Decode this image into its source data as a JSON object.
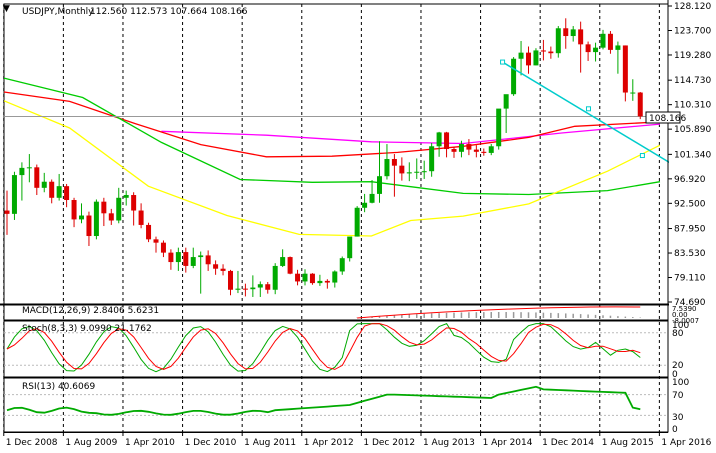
{
  "header": {
    "symbol": "USDJPY,Monthly",
    "ohlc": "112.560 112.573 107.664 108.166"
  },
  "chart_data": {
    "type": "candlestick",
    "symbol": "USDJPY",
    "timeframe": "Monthly",
    "price_axis": {
      "ticks": [
        "128.120",
        "123.700",
        "119.280",
        "114.730",
        "110.310",
        "105.890",
        "101.340",
        "96.920",
        "92.500",
        "87.950",
        "83.530",
        "79.110",
        "74.690"
      ],
      "range": [
        74.69,
        128.12
      ],
      "current_price_label": "108.166",
      "current_price": 108.166
    },
    "time_axis": {
      "labels": [
        "1 Dec 2008",
        "1 Aug 2009",
        "1 Apr 2010",
        "1 Dec 2010",
        "1 Aug 2011",
        "1 Apr 2012",
        "1 Dec 2012",
        "1 Aug 2013",
        "1 Apr 2014",
        "1 Dec 2014",
        "1 Aug 2015",
        "1 Apr 2016"
      ]
    },
    "candles": [
      [
        91.2,
        94.8,
        86.8,
        90.6
      ],
      [
        90.6,
        98.2,
        89.5,
        97.6
      ],
      [
        97.6,
        99.9,
        93.0,
        98.9
      ],
      [
        98.9,
        101.4,
        96.3,
        99.0
      ],
      [
        99.0,
        99.5,
        94.0,
        95.3
      ],
      [
        95.3,
        98.0,
        94.5,
        96.4
      ],
      [
        96.4,
        96.8,
        92.5,
        93.5
      ],
      [
        93.5,
        97.8,
        93.0,
        95.6
      ],
      [
        95.6,
        96.0,
        91.8,
        93.1
      ],
      [
        93.1,
        93.5,
        88.2,
        89.6
      ],
      [
        89.6,
        92.5,
        88.9,
        90.3
      ],
      [
        90.3,
        91.0,
        84.8,
        86.6
      ],
      [
        86.6,
        93.2,
        86.0,
        92.8
      ],
      [
        92.8,
        93.5,
        88.4,
        90.7
      ],
      [
        90.7,
        91.5,
        88.6,
        89.4
      ],
      [
        89.4,
        95.3,
        88.9,
        93.5
      ],
      [
        93.5,
        94.8,
        92.1,
        94.0
      ],
      [
        94.0,
        94.5,
        88.5,
        91.2
      ],
      [
        91.2,
        92.5,
        88.0,
        88.6
      ],
      [
        88.6,
        89.0,
        85.5,
        86.0
      ],
      [
        86.0,
        86.5,
        83.6,
        85.4
      ],
      [
        85.4,
        85.8,
        82.8,
        83.6
      ],
      [
        83.6,
        84.2,
        80.5,
        81.9
      ],
      [
        81.9,
        84.5,
        80.3,
        83.7
      ],
      [
        83.7,
        84.5,
        80.0,
        81.2
      ],
      [
        81.2,
        84.5,
        80.8,
        82.8
      ],
      [
        82.8,
        83.8,
        76.2,
        83.1
      ],
      [
        83.1,
        84.0,
        80.3,
        81.5
      ],
      [
        81.5,
        82.2,
        79.6,
        80.7
      ],
      [
        80.7,
        81.5,
        79.5,
        80.3
      ],
      [
        80.3,
        80.5,
        75.9,
        76.9
      ],
      [
        76.9,
        80.3,
        76.3,
        77.1
      ],
      [
        77.1,
        78.0,
        75.7,
        77.0
      ],
      [
        77.0,
        79.5,
        75.6,
        77.3
      ],
      [
        77.3,
        78.4,
        75.6,
        77.9
      ],
      [
        77.9,
        78.3,
        76.2,
        76.9
      ],
      [
        76.9,
        81.7,
        76.1,
        81.2
      ],
      [
        81.2,
        84.2,
        81.0,
        82.8
      ],
      [
        82.8,
        82.9,
        79.7,
        79.8
      ],
      [
        79.8,
        80.5,
        77.7,
        78.4
      ],
      [
        78.4,
        80.6,
        77.7,
        79.8
      ],
      [
        79.8,
        79.9,
        77.8,
        78.1
      ],
      [
        78.1,
        79.6,
        77.6,
        78.5
      ],
      [
        78.5,
        78.8,
        77.1,
        78.2
      ],
      [
        78.2,
        80.4,
        77.3,
        80.2
      ],
      [
        80.2,
        82.9,
        79.6,
        82.6
      ],
      [
        82.6,
        86.4,
        82.0,
        86.5
      ],
      [
        86.5,
        92.0,
        86.5,
        91.7
      ],
      [
        91.7,
        94.2,
        90.9,
        92.6
      ],
      [
        92.6,
        96.7,
        92.5,
        94.2
      ],
      [
        94.2,
        103.7,
        92.6,
        97.4
      ],
      [
        97.4,
        103.2,
        96.8,
        100.5
      ],
      [
        100.5,
        101.4,
        93.7,
        99.3
      ],
      [
        99.3,
        100.8,
        96.6,
        97.9
      ],
      [
        97.9,
        99.9,
        96.5,
        98.1
      ],
      [
        98.1,
        100.6,
        96.9,
        98.2
      ],
      [
        98.2,
        100.2,
        96.9,
        98.3
      ],
      [
        98.3,
        103.4,
        97.3,
        102.8
      ],
      [
        102.8,
        105.4,
        100.9,
        105.3
      ],
      [
        105.3,
        105.4,
        100.8,
        102.3
      ],
      [
        102.3,
        102.7,
        100.7,
        101.8
      ],
      [
        101.8,
        103.8,
        100.8,
        103.2
      ],
      [
        103.2,
        104.1,
        101.2,
        102.2
      ],
      [
        102.2,
        103.0,
        100.8,
        101.8
      ],
      [
        101.8,
        102.4,
        101.1,
        101.6
      ],
      [
        101.6,
        103.2,
        101.2,
        102.8
      ],
      [
        102.8,
        109.5,
        102.2,
        109.6
      ],
      [
        109.6,
        112.0,
        105.2,
        112.2
      ],
      [
        112.2,
        118.9,
        111.9,
        118.6
      ],
      [
        118.6,
        121.8,
        115.6,
        119.7
      ],
      [
        119.7,
        120.8,
        115.9,
        117.4
      ],
      [
        117.4,
        120.5,
        117.4,
        120.1
      ],
      [
        120.1,
        122.0,
        118.3,
        119.9
      ],
      [
        119.9,
        120.8,
        118.6,
        119.6
      ],
      [
        119.6,
        124.5,
        118.8,
        124.1
      ],
      [
        124.1,
        125.9,
        120.4,
        122.7
      ],
      [
        122.7,
        124.5,
        121.7,
        123.9
      ],
      [
        123.9,
        125.3,
        116.1,
        121.2
      ],
      [
        121.2,
        121.7,
        118.2,
        119.8
      ],
      [
        119.8,
        121.5,
        118.1,
        120.6
      ],
      [
        120.6,
        123.8,
        120.3,
        123.1
      ],
      [
        123.1,
        123.6,
        119.5,
        120.2
      ],
      [
        120.2,
        121.7,
        115.9,
        121.0
      ],
      [
        121.0,
        121.0,
        110.9,
        112.5
      ],
      [
        112.5,
        114.9,
        111.0,
        112.5
      ],
      [
        112.5,
        112.6,
        107.7,
        108.2
      ]
    ],
    "moving_averages": [
      {
        "color": "#ff00ff",
        "points": [
          [
            24,
            105.5
          ],
          [
            40,
            104.8
          ],
          [
            56,
            103.6
          ],
          [
            70,
            103.3
          ],
          [
            85,
            105.2
          ],
          [
            100,
            106.8
          ]
        ]
      },
      {
        "color": "#ff0000",
        "points": [
          [
            0,
            112.6
          ],
          [
            10,
            110.9
          ],
          [
            20,
            106.9
          ],
          [
            30,
            103.1
          ],
          [
            40,
            100.9
          ],
          [
            50,
            101.0
          ],
          [
            60,
            101.7
          ],
          [
            70,
            102.8
          ],
          [
            80,
            104.4
          ],
          [
            87,
            106.4
          ],
          [
            100,
            107.2
          ]
        ]
      },
      {
        "color": "#00cc00",
        "points": [
          [
            0,
            115.1
          ],
          [
            12,
            111.6
          ],
          [
            24,
            103.5
          ],
          [
            36,
            96.8
          ],
          [
            47,
            96.3
          ],
          [
            56,
            96.4
          ],
          [
            62,
            95.5
          ],
          [
            70,
            94.3
          ],
          [
            80,
            94.1
          ],
          [
            92,
            94.8
          ],
          [
            100,
            96.4
          ]
        ]
      },
      {
        "color": "#ffff00",
        "points": [
          [
            0,
            111.0
          ],
          [
            10,
            106.1
          ],
          [
            22,
            95.6
          ],
          [
            34,
            90.3
          ],
          [
            45,
            86.9
          ],
          [
            56,
            86.6
          ],
          [
            62,
            89.4
          ],
          [
            70,
            90.2
          ],
          [
            80,
            92.4
          ],
          [
            92,
            98.3
          ],
          [
            100,
            103.0
          ]
        ]
      }
    ],
    "trendline": {
      "color": "#00cccc",
      "from": [
        76,
        118.0
      ],
      "to": [
        90,
        105.1
      ]
    },
    "macd": {
      "label": "MACD(12,26,9) 2.8406 5.6231",
      "ticks": [
        "7.5390",
        "0.00",
        "-8.0007"
      ]
    },
    "stochastic": {
      "label": "Stoch(8,3,3) 9.0990 21.1762",
      "ticks": [
        "100",
        "80",
        "20",
        "0"
      ]
    },
    "rsi": {
      "label": "RSI(13) 40.6069",
      "ticks": [
        "100",
        "70",
        "30",
        "0"
      ]
    }
  }
}
